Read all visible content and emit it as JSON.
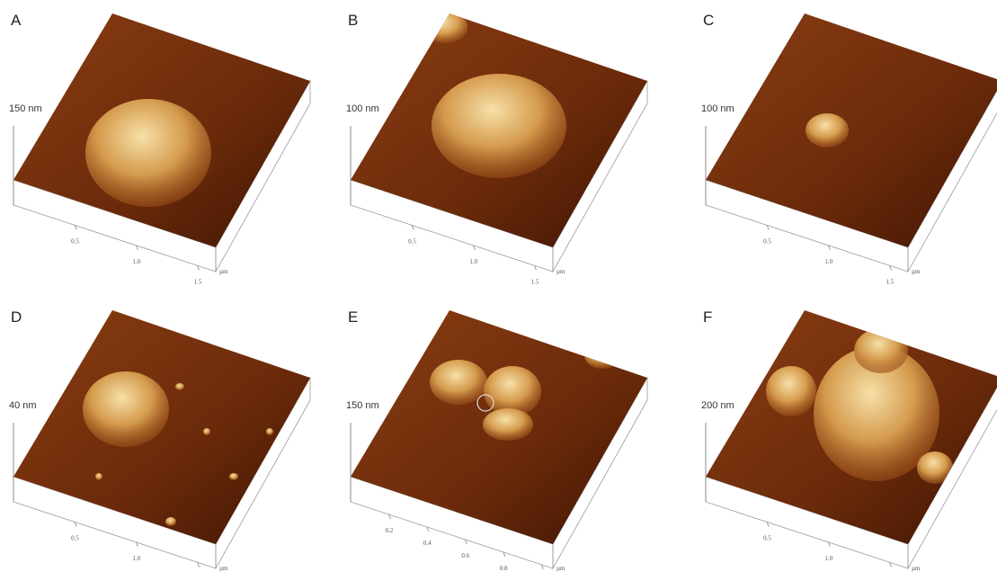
{
  "panels": [
    {
      "label": "A",
      "height_scale": "150 nm",
      "ticks": [
        "0.5",
        "1.0",
        "1.5"
      ],
      "unit": "µm"
    },
    {
      "label": "B",
      "height_scale": "100 nm",
      "ticks": [
        "0.5",
        "1.0",
        "1.5"
      ],
      "unit": "µm"
    },
    {
      "label": "C",
      "height_scale": "100 nm",
      "ticks": [
        "0.5",
        "1.0",
        "1.5"
      ],
      "unit": "µm"
    },
    {
      "label": "D",
      "height_scale": "40 nm",
      "ticks": [
        "0.5",
        "1.0",
        "1.5"
      ],
      "unit": "µm"
    },
    {
      "label": "E",
      "height_scale": "150 nm",
      "ticks": [
        "0.2",
        "0.4",
        "0.6",
        "0.8",
        "1.0"
      ],
      "unit": "µm"
    },
    {
      "label": "F",
      "height_scale": "200 nm",
      "ticks": [
        "0.5",
        "1.0",
        "1.5"
      ],
      "unit": "µm"
    }
  ]
}
